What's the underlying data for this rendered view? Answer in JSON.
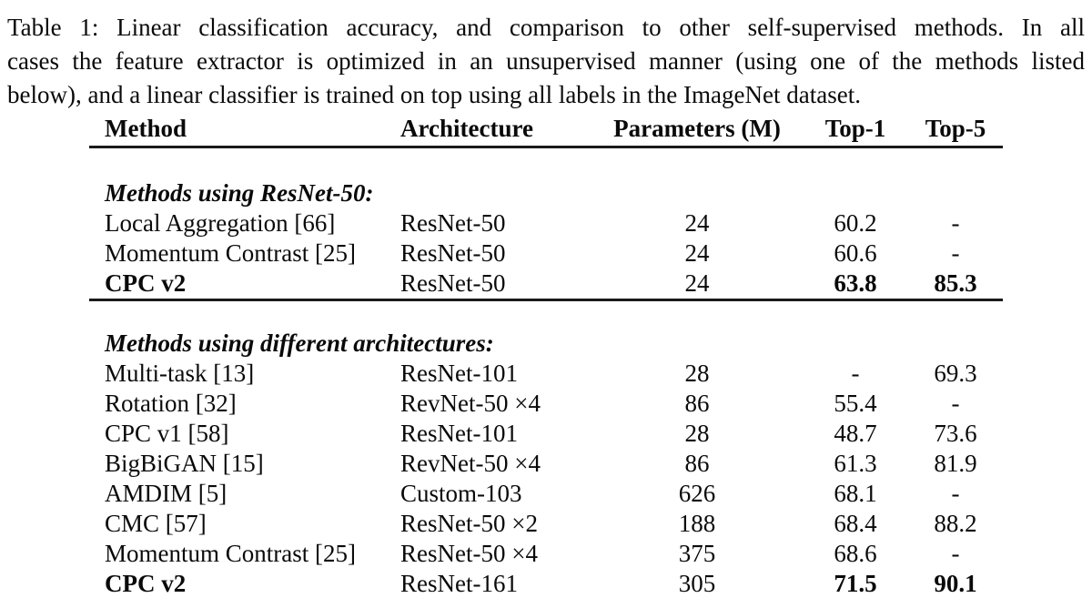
{
  "page": {
    "background_color": "#ffffff",
    "text_color": "#0a0a0a",
    "rule_color": "#1a1a1a"
  },
  "caption": {
    "lines": [
      "Table 1: Linear classification accuracy, and comparison to other self-supervised methods. In all",
      "cases the feature extractor is optimized in an unsupervised manner (using one of the methods listed",
      "below), and a linear classifier is trained on top using all labels in the ImageNet dataset."
    ]
  },
  "table": {
    "columns": [
      "Method",
      "Architecture",
      "Parameters (M)",
      "Top-1",
      "Top-5"
    ],
    "sections": [
      {
        "heading": "Methods using ResNet-50:",
        "rows": [
          {
            "method": "Local Aggregation [66]",
            "architecture": "ResNet-50",
            "parameters": "24",
            "top1": "60.2",
            "top5": "-"
          },
          {
            "method": "Momentum Contrast [25]",
            "architecture": "ResNet-50",
            "parameters": "24",
            "top1": "60.6",
            "top5": "-"
          },
          {
            "method": "CPC v2",
            "architecture": "ResNet-50",
            "parameters": "24",
            "top1": "63.8",
            "top5": "85.3"
          }
        ]
      },
      {
        "heading": "Methods using different architectures:",
        "rows": [
          {
            "method": "Multi-task [13]",
            "architecture": "ResNet-101",
            "parameters": "28",
            "top1": "-",
            "top5": "69.3"
          },
          {
            "method": "Rotation [32]",
            "architecture": "RevNet-50 ×4",
            "parameters": "86",
            "top1": "55.4",
            "top5": "-"
          },
          {
            "method": "CPC v1 [58]",
            "architecture": "ResNet-101",
            "parameters": "28",
            "top1": "48.7",
            "top5": "73.6"
          },
          {
            "method": "BigBiGAN [15]",
            "architecture": "RevNet-50 ×4",
            "parameters": "86",
            "top1": "61.3",
            "top5": "81.9"
          },
          {
            "method": "AMDIM [5]",
            "architecture": "Custom-103",
            "parameters": "626",
            "top1": "68.1",
            "top5": "-"
          },
          {
            "method": "CMC [57]",
            "architecture": "ResNet-50 ×2",
            "parameters": "188",
            "top1": "68.4",
            "top5": "88.2"
          },
          {
            "method": "Momentum Contrast [25]",
            "architecture": "ResNet-50 ×4",
            "parameters": "375",
            "top1": "68.6",
            "top5": "-"
          },
          {
            "method": "CPC v2",
            "architecture": "ResNet-161",
            "parameters": "305",
            "top1": "71.5",
            "top5": "90.1"
          }
        ]
      }
    ]
  }
}
